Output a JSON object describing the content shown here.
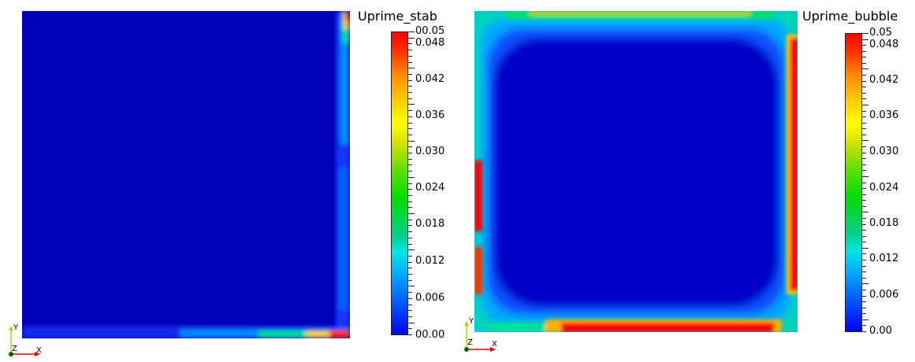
{
  "left": {
    "scalar_title": "Uprime_stab",
    "bar_labels": [
      "00.05",
      "0.048",
      "0.042",
      "0.036",
      "0.030",
      "0.024",
      "0.018",
      "0.012",
      "0.006",
      "00.00"
    ],
    "axes": {
      "y": "Y",
      "z": "Z",
      "x": "X"
    }
  },
  "right": {
    "scalar_title": "Uprime_bubble",
    "bar_labels": [
      "0.05",
      "0.048",
      "0.042",
      "0.036",
      "0.030",
      "0.024",
      "0.018",
      "0.012",
      "0.006",
      "0.00"
    ],
    "axes": {
      "y": "Y",
      "z": "Z",
      "x": "X"
    }
  },
  "colors": {
    "low": "#0000c8",
    "mid": "#00d0a0",
    "high": "#ff0000"
  }
}
